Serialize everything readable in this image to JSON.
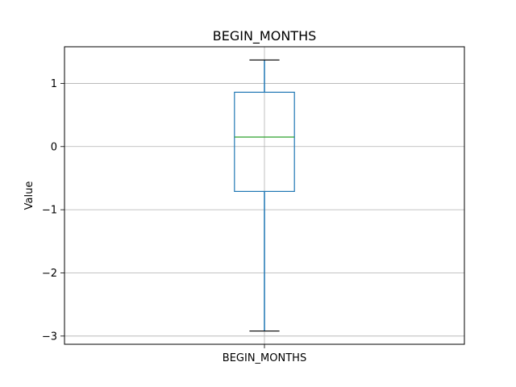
{
  "chart_data": {
    "type": "box",
    "title": "BEGIN_MONTHS",
    "xlabel": "",
    "ylabel": "Value",
    "categories": [
      "BEGIN_MONTHS"
    ],
    "ylim": [
      -3.13,
      1.58
    ],
    "yticks": [
      1,
      0,
      -1,
      -2,
      -3
    ],
    "ytick_labels": [
      "1",
      "0",
      "−1",
      "−2",
      "−3"
    ],
    "grid": true,
    "boxes": [
      {
        "name": "BEGIN_MONTHS",
        "whisker_low": -2.92,
        "q1": -0.71,
        "median": 0.15,
        "q3": 0.86,
        "whisker_high": 1.37
      }
    ],
    "colors": {
      "box": "#1f77b4",
      "median": "#2ca02c",
      "cap": "#000000",
      "grid": "#b0b0b0",
      "frame": "#000000"
    }
  }
}
